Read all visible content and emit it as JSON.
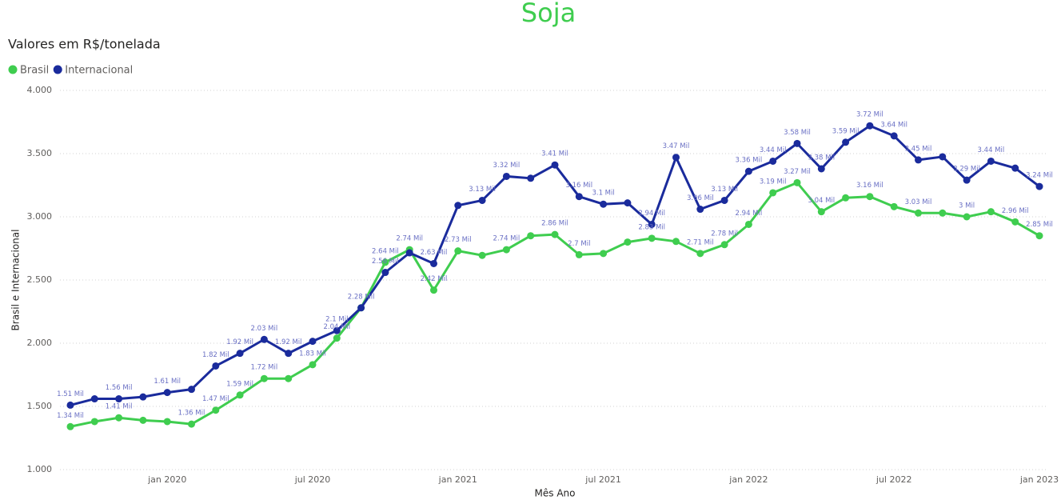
{
  "chart_data": {
    "type": "line",
    "title": "Soja",
    "subtitle": "Valores em R$/tonelada",
    "x_label": "Mês Ano",
    "y_label": "Brasil e Internacional",
    "x": [
      "2019-09",
      "2019-10",
      "2019-11",
      "2019-12",
      "2020-01",
      "2020-02",
      "2020-03",
      "2020-04",
      "2020-05",
      "2020-06",
      "2020-07",
      "2020-08",
      "2020-09",
      "2020-10",
      "2020-11",
      "2020-12",
      "2021-01",
      "2021-02",
      "2021-03",
      "2021-04",
      "2021-05",
      "2021-06",
      "2021-07",
      "2021-08",
      "2021-09",
      "2021-10",
      "2021-11",
      "2021-12",
      "2022-01",
      "2022-02",
      "2022-03",
      "2022-04",
      "2022-05",
      "2022-06",
      "2022-07",
      "2022-08",
      "2022-09",
      "2022-10",
      "2022-11",
      "2022-12",
      "2023-01"
    ],
    "xticks": [
      {
        "value": "2020-01",
        "label": "jan 2020"
      },
      {
        "value": "2020-07",
        "label": "jul 2020"
      },
      {
        "value": "2021-01",
        "label": "jan 2021"
      },
      {
        "value": "2021-07",
        "label": "jul 2021"
      },
      {
        "value": "2022-01",
        "label": "jan 2022"
      },
      {
        "value": "2022-07",
        "label": "jul 2022"
      },
      {
        "value": "2023-01",
        "label": "jan 2023"
      }
    ],
    "ylim": [
      1000,
      4000
    ],
    "yticks": [
      {
        "value": 1000,
        "label": "1.000"
      },
      {
        "value": 1500,
        "label": "1.500"
      },
      {
        "value": 2000,
        "label": "2.000"
      },
      {
        "value": 2500,
        "label": "2.500"
      },
      {
        "value": 3000,
        "label": "3.000"
      },
      {
        "value": 3500,
        "label": "3.500"
      },
      {
        "value": 4000,
        "label": "4.000"
      }
    ],
    "grid": true,
    "legend": "top-left",
    "series": [
      {
        "name": "Brasil",
        "color": "#3fcd4f",
        "values": [
          1340,
          1380,
          1410,
          1390,
          1380,
          1360,
          1470,
          1590,
          1720,
          1720,
          1830,
          2040,
          2280,
          2640,
          2740,
          2420,
          2730,
          2695,
          2740,
          2850,
          2860,
          2700,
          2710,
          2800,
          2830,
          2805,
          2710,
          2780,
          2940,
          3190,
          3270,
          3040,
          3150,
          3160,
          3080,
          3030,
          3030,
          3000,
          3040,
          2960,
          2850
        ],
        "value_labels": [
          "1.34 Mil",
          null,
          "1.41 Mil",
          null,
          null,
          "1.36 Mil",
          "1.47 Mil",
          "1.59 Mil",
          "1.72 Mil",
          null,
          "1.83 Mil",
          "2.04 Mil",
          null,
          "2.64 Mil",
          "2.74 Mil",
          "2.42 Mil",
          "2.73 Mil",
          null,
          "2.74 Mil",
          null,
          "2.86 Mil",
          "2.7 Mil",
          null,
          null,
          "2.83 Mil",
          null,
          "2.71 Mil",
          "2.78 Mil",
          "2.94 Mil",
          "3.19 Mil",
          "3.27 Mil",
          "3.04 Mil",
          null,
          "3.16 Mil",
          null,
          "3.03 Mil",
          null,
          "3 Mil",
          null,
          "2.96 Mil",
          "2.85 Mil"
        ]
      },
      {
        "name": "Internacional",
        "color": "#1a2b9c",
        "values": [
          1510,
          1560,
          1560,
          1575,
          1610,
          1635,
          1820,
          1920,
          2030,
          1920,
          2015,
          2100,
          2280,
          2560,
          2715,
          2630,
          3090,
          3130,
          3320,
          3305,
          3410,
          3160,
          3100,
          3110,
          2940,
          3470,
          3060,
          3130,
          3360,
          3440,
          3580,
          3380,
          3590,
          3720,
          3640,
          3450,
          3475,
          3290,
          3440,
          3385,
          3240
        ],
        "value_labels": [
          "1.51 Mil",
          null,
          "1.56 Mil",
          null,
          "1.61 Mil",
          null,
          "1.82 Mil",
          "1.92 Mil",
          "2.03 Mil",
          "1.92 Mil",
          null,
          "2.1 Mil",
          "2.28 Mil",
          "2.56 Mil",
          null,
          "2.63 Mil",
          null,
          "3.13 Mil",
          "3.32 Mil",
          null,
          "3.41 Mil",
          "3.16 Mil",
          "3.1 Mil",
          null,
          "2.94 Mil",
          "3.47 Mil",
          "3.06 Mil",
          "3.13 Mil",
          "3.36 Mil",
          "3.44 Mil",
          "3.58 Mil",
          "3.38 Mil",
          "3.59 Mil",
          "3.72 Mil",
          "3.64 Mil",
          "3.45 Mil",
          null,
          "3.29 Mil",
          "3.44 Mil",
          null,
          "3.24 Mil"
        ]
      }
    ]
  }
}
